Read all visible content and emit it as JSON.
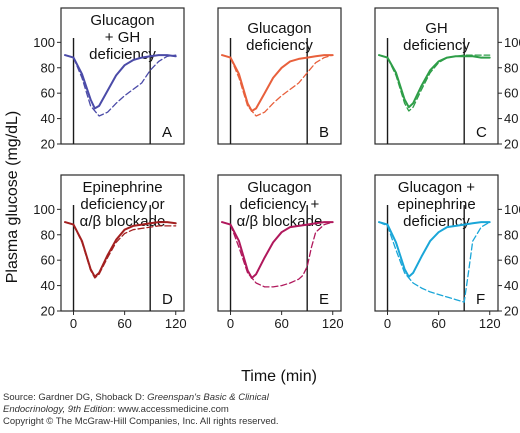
{
  "chart_data": [
    {
      "type": "line",
      "panel": "A",
      "title": [
        "Glucagon",
        "+ GH",
        "deficiency"
      ],
      "color": "#4b4ba8",
      "xlim": [
        -10,
        125
      ],
      "ylim": [
        20,
        105
      ],
      "vlines": [
        0,
        90
      ],
      "series": [
        {
          "style": "solid",
          "x": [
            -10,
            0,
            10,
            20,
            25,
            30,
            40,
            50,
            60,
            70,
            80,
            90,
            100,
            110,
            120
          ],
          "y": [
            90,
            88,
            75,
            55,
            48,
            50,
            62,
            74,
            82,
            86,
            88,
            89,
            90,
            90,
            89
          ]
        },
        {
          "style": "dashed",
          "x": [
            -10,
            0,
            10,
            20,
            30,
            40,
            50,
            60,
            70,
            80,
            90,
            100,
            110,
            120
          ],
          "y": [
            90,
            88,
            72,
            50,
            42,
            45,
            52,
            58,
            63,
            68,
            78,
            85,
            89,
            90
          ]
        }
      ]
    },
    {
      "type": "line",
      "panel": "B",
      "title": [
        "Glucagon",
        "deficiency"
      ],
      "color": "#e8603c",
      "xlim": [
        -10,
        125
      ],
      "ylim": [
        20,
        105
      ],
      "vlines": [
        0,
        90
      ],
      "series": [
        {
          "style": "solid",
          "x": [
            -10,
            0,
            10,
            20,
            25,
            30,
            40,
            50,
            60,
            70,
            80,
            90,
            100,
            110,
            120
          ],
          "y": [
            90,
            88,
            75,
            52,
            46,
            48,
            60,
            72,
            80,
            85,
            87,
            88,
            89,
            90,
            90
          ]
        },
        {
          "style": "dashed",
          "x": [
            -10,
            0,
            10,
            20,
            30,
            40,
            50,
            60,
            70,
            80,
            90,
            100,
            110,
            120
          ],
          "y": [
            90,
            88,
            72,
            50,
            42,
            45,
            52,
            58,
            63,
            68,
            76,
            84,
            88,
            90
          ]
        }
      ]
    },
    {
      "type": "line",
      "panel": "C",
      "title": [
        "GH",
        "deficiency"
      ],
      "color": "#2e9e48",
      "xlim": [
        -10,
        125
      ],
      "ylim": [
        20,
        105
      ],
      "vlines": [
        0,
        90
      ],
      "series": [
        {
          "style": "solid",
          "x": [
            -10,
            0,
            10,
            20,
            25,
            30,
            40,
            50,
            60,
            70,
            80,
            90,
            100,
            110,
            120
          ],
          "y": [
            90,
            88,
            76,
            55,
            49,
            52,
            66,
            78,
            85,
            88,
            89,
            89,
            89,
            88,
            88
          ]
        },
        {
          "style": "dashed",
          "x": [
            -10,
            0,
            10,
            20,
            25,
            30,
            40,
            50,
            60,
            70,
            80,
            90,
            100,
            110,
            120
          ],
          "y": [
            90,
            88,
            74,
            52,
            46,
            49,
            63,
            76,
            84,
            88,
            89,
            90,
            90,
            90,
            90
          ]
        }
      ]
    },
    {
      "type": "line",
      "panel": "D",
      "title": [
        "Epinephrine",
        "deficiency or",
        "α/β blockade"
      ],
      "color": "#a32020",
      "xlim": [
        -10,
        125
      ],
      "ylim": [
        20,
        105
      ],
      "vlines": [
        0,
        90
      ],
      "series": [
        {
          "style": "solid",
          "x": [
            -10,
            0,
            10,
            20,
            25,
            30,
            40,
            50,
            60,
            70,
            80,
            90,
            100,
            110,
            120
          ],
          "y": [
            90,
            88,
            75,
            53,
            47,
            50,
            64,
            76,
            84,
            87,
            88,
            89,
            90,
            90,
            89
          ]
        },
        {
          "style": "dashed",
          "x": [
            -10,
            0,
            10,
            20,
            25,
            30,
            40,
            50,
            60,
            70,
            80,
            90,
            100,
            110,
            120
          ],
          "y": [
            90,
            88,
            74,
            52,
            46,
            49,
            62,
            74,
            81,
            84,
            85,
            86,
            87,
            87,
            87
          ]
        }
      ]
    },
    {
      "type": "line",
      "panel": "E",
      "title": [
        "Glucagon",
        "deficiency +",
        "α/β blockade"
      ],
      "color": "#b0185c",
      "xlim": [
        -10,
        125
      ],
      "ylim": [
        20,
        105
      ],
      "vlines": [
        0,
        90
      ],
      "series": [
        {
          "style": "solid",
          "x": [
            -10,
            0,
            10,
            20,
            25,
            30,
            40,
            50,
            60,
            70,
            80,
            90,
            100,
            110,
            120
          ],
          "y": [
            90,
            88,
            75,
            52,
            46,
            49,
            62,
            74,
            82,
            86,
            87,
            88,
            89,
            90,
            90
          ]
        },
        {
          "style": "dashed",
          "x": [
            -10,
            0,
            10,
            20,
            30,
            40,
            50,
            60,
            70,
            80,
            85,
            90,
            95,
            100,
            110,
            120
          ],
          "y": [
            90,
            88,
            70,
            50,
            42,
            39,
            39,
            40,
            42,
            45,
            48,
            55,
            70,
            82,
            88,
            90
          ]
        }
      ]
    },
    {
      "type": "line",
      "panel": "F",
      "title": [
        "Glucagon +",
        "epinephrine",
        "deficiency"
      ],
      "color": "#1aa6d8",
      "xlim": [
        -10,
        125
      ],
      "ylim": [
        20,
        105
      ],
      "vlines": [
        0,
        90
      ],
      "series": [
        {
          "style": "solid",
          "x": [
            -10,
            0,
            10,
            20,
            25,
            30,
            40,
            50,
            60,
            70,
            80,
            90,
            100,
            110,
            120
          ],
          "y": [
            90,
            88,
            74,
            53,
            47,
            50,
            63,
            75,
            82,
            86,
            87,
            88,
            89,
            90,
            90
          ]
        },
        {
          "style": "dashed",
          "x": [
            -10,
            0,
            10,
            20,
            30,
            40,
            50,
            60,
            70,
            80,
            90,
            95,
            100,
            110,
            120
          ],
          "y": [
            90,
            87,
            68,
            50,
            42,
            38,
            35,
            33,
            31,
            29,
            27,
            50,
            75,
            86,
            90
          ]
        }
      ]
    }
  ],
  "axes": {
    "ylabel": "Plasma glucose (mg/dL)",
    "xlabel": "Time (min)",
    "yticks": [
      20,
      40,
      60,
      80,
      100
    ],
    "xticks": [
      0,
      60,
      120
    ]
  },
  "source": {
    "line1_prefix": "Source: Gardner DG, Shoback D: ",
    "line1_italic": "Greenspan's Basic & Clinical",
    "line2_italic": "Endocrinology, 9th Edition",
    "line2_suffix": ": www.accessmedicine.com",
    "copyright": "Copyright © The McGraw-Hill Companies, Inc. All rights reserved."
  }
}
